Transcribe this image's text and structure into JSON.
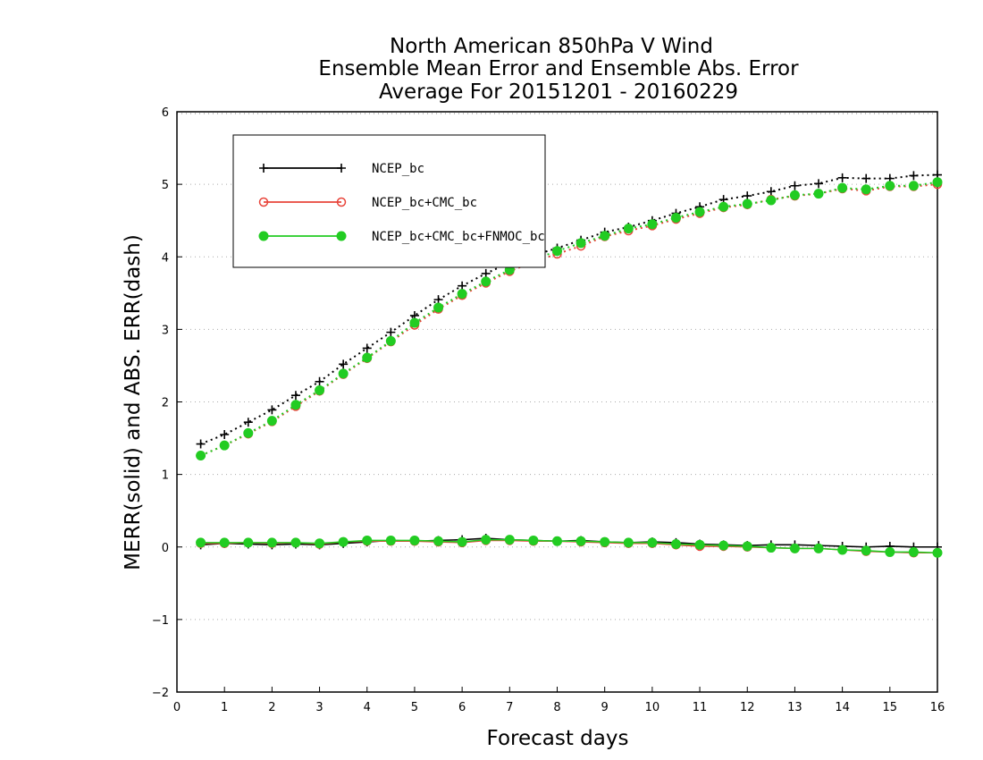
{
  "chart_data": {
    "type": "line",
    "title": [
      "North American 850hPa V Wind",
      "Ensemble Mean Error and Ensemble Abs. Error",
      "Average For 20151201 - 20160229"
    ],
    "xlabel": "Forecast days",
    "ylabel": "MERR(solid) and ABS. ERR(dash)",
    "xlim": [
      0,
      16
    ],
    "ylim": [
      -2,
      6
    ],
    "xticks": [
      "0",
      "1",
      "2",
      "3",
      "4",
      "5",
      "6",
      "7",
      "8",
      "9",
      "10",
      "11",
      "12",
      "13",
      "14",
      "15",
      "16"
    ],
    "yticks": [
      {
        "value": -2,
        "label": "-2"
      },
      {
        "value": -1,
        "label": "-1"
      },
      {
        "value": 0,
        "label": "0"
      },
      {
        "value": 1,
        "label": "1"
      },
      {
        "value": 2,
        "label": "2"
      },
      {
        "value": 3,
        "label": "3"
      },
      {
        "value": 4,
        "label": "4"
      },
      {
        "value": 5,
        "label": "5"
      },
      {
        "value": 6,
        "label": "6"
      }
    ],
    "grid": true,
    "legend_position": "top-left",
    "x": [
      0.5,
      1,
      1.5,
      2,
      2.5,
      3,
      3.5,
      4,
      4.5,
      5,
      5.5,
      6,
      6.5,
      7,
      7.5,
      8,
      8.5,
      9,
      9.5,
      10,
      10.5,
      11,
      11.5,
      12,
      12.5,
      13,
      13.5,
      14,
      14.5,
      15,
      15.5,
      16
    ],
    "series": [
      {
        "name": "NCEP_bc",
        "color": "#000000",
        "marker": "plus",
        "abs_err": [
          1.42,
          1.55,
          1.72,
          1.89,
          2.09,
          2.28,
          2.52,
          2.74,
          2.96,
          3.19,
          3.41,
          3.6,
          3.77,
          3.92,
          4.02,
          4.12,
          4.23,
          4.34,
          4.41,
          4.5,
          4.6,
          4.69,
          4.79,
          4.84,
          4.9,
          4.98,
          5.01,
          5.09,
          5.08,
          5.08,
          5.12,
          5.13
        ],
        "mean_err": [
          0.03,
          0.05,
          0.04,
          0.03,
          0.04,
          0.03,
          0.05,
          0.07,
          0.09,
          0.08,
          0.09,
          0.1,
          0.12,
          0.1,
          0.09,
          0.08,
          0.09,
          0.07,
          0.06,
          0.07,
          0.06,
          0.04,
          0.03,
          0.02,
          0.03,
          0.03,
          0.02,
          0.01,
          0.0,
          0.01,
          0.0,
          0.0
        ]
      },
      {
        "name": "NCEP_bc+CMC_bc",
        "color": "#e8443a",
        "marker": "open-circle",
        "abs_err": [
          1.26,
          1.4,
          1.56,
          1.73,
          1.94,
          2.15,
          2.38,
          2.6,
          2.83,
          3.06,
          3.28,
          3.47,
          3.64,
          3.8,
          3.93,
          4.04,
          4.15,
          4.28,
          4.36,
          4.43,
          4.52,
          4.6,
          4.68,
          4.72,
          4.79,
          4.84,
          4.87,
          4.94,
          4.91,
          4.97,
          4.97,
          5.0
        ],
        "mean_err": [
          0.05,
          0.05,
          0.06,
          0.05,
          0.06,
          0.04,
          0.07,
          0.08,
          0.08,
          0.08,
          0.07,
          0.06,
          0.09,
          0.09,
          0.08,
          0.08,
          0.07,
          0.06,
          0.05,
          0.05,
          0.03,
          0.01,
          0.01,
          0.0,
          -0.01,
          -0.02,
          -0.02,
          -0.04,
          -0.06,
          -0.07,
          -0.08,
          -0.08
        ]
      },
      {
        "name": "NCEP_bc+CMC_bc+FNMOC_bc",
        "color": "#22cc22",
        "marker": "filled-circle",
        "abs_err": [
          1.26,
          1.4,
          1.57,
          1.74,
          1.96,
          2.16,
          2.39,
          2.61,
          2.84,
          3.09,
          3.3,
          3.49,
          3.66,
          3.82,
          3.96,
          4.08,
          4.19,
          4.29,
          4.39,
          4.45,
          4.54,
          4.62,
          4.69,
          4.73,
          4.78,
          4.85,
          4.87,
          4.95,
          4.93,
          4.98,
          4.98,
          5.03
        ],
        "mean_err": [
          0.06,
          0.06,
          0.06,
          0.06,
          0.06,
          0.05,
          0.07,
          0.09,
          0.09,
          0.09,
          0.08,
          0.07,
          0.1,
          0.1,
          0.09,
          0.08,
          0.08,
          0.07,
          0.06,
          0.06,
          0.04,
          0.03,
          0.02,
          0.01,
          -0.01,
          -0.02,
          -0.02,
          -0.04,
          -0.05,
          -0.07,
          -0.07,
          -0.08
        ]
      }
    ]
  }
}
